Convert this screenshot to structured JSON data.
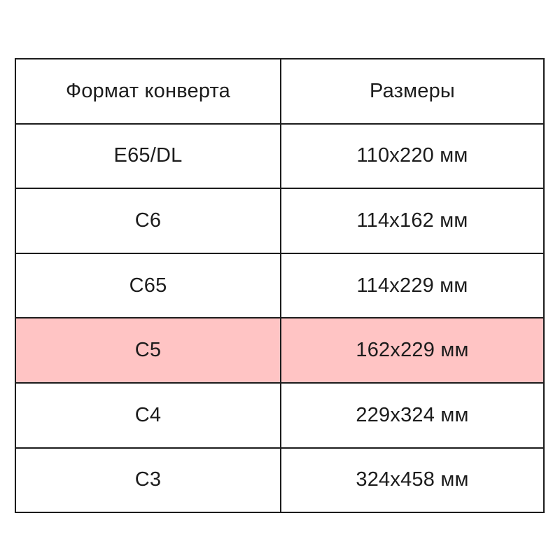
{
  "table": {
    "headers": [
      {
        "label": "Формат конверта"
      },
      {
        "label": "Размеры"
      }
    ],
    "rows": [
      {
        "format": "E65/DL",
        "size": "110x220 мм",
        "highlighted": false
      },
      {
        "format": "C6",
        "size": "114x162 мм",
        "highlighted": false
      },
      {
        "format": "C65",
        "size": "114x229 мм",
        "highlighted": false
      },
      {
        "format": "C5",
        "size": "162x229 мм",
        "highlighted": true
      },
      {
        "format": "C4",
        "size": "229x324 мм",
        "highlighted": false
      },
      {
        "format": "C3",
        "size": "324x458 мм",
        "highlighted": false
      }
    ],
    "highlight_color": "#ffc4c4",
    "border_color": "#1c1c1c",
    "text_color": "#1c1c1c",
    "background_color": "#ffffff"
  },
  "chart_data": {
    "type": "table",
    "title": "",
    "columns": [
      "Формат конверта",
      "Размеры"
    ],
    "rows": [
      [
        "E65/DL",
        "110x220 мм"
      ],
      [
        "C6",
        "114x162 мм"
      ],
      [
        "C65",
        "114x229 мм"
      ],
      [
        "C5",
        "162x229 мм"
      ],
      [
        "C4",
        "229x324 мм"
      ],
      [
        "C3",
        "324x458 мм"
      ]
    ],
    "highlighted_row": "C5",
    "highlight_color": "#ffc4c4"
  }
}
